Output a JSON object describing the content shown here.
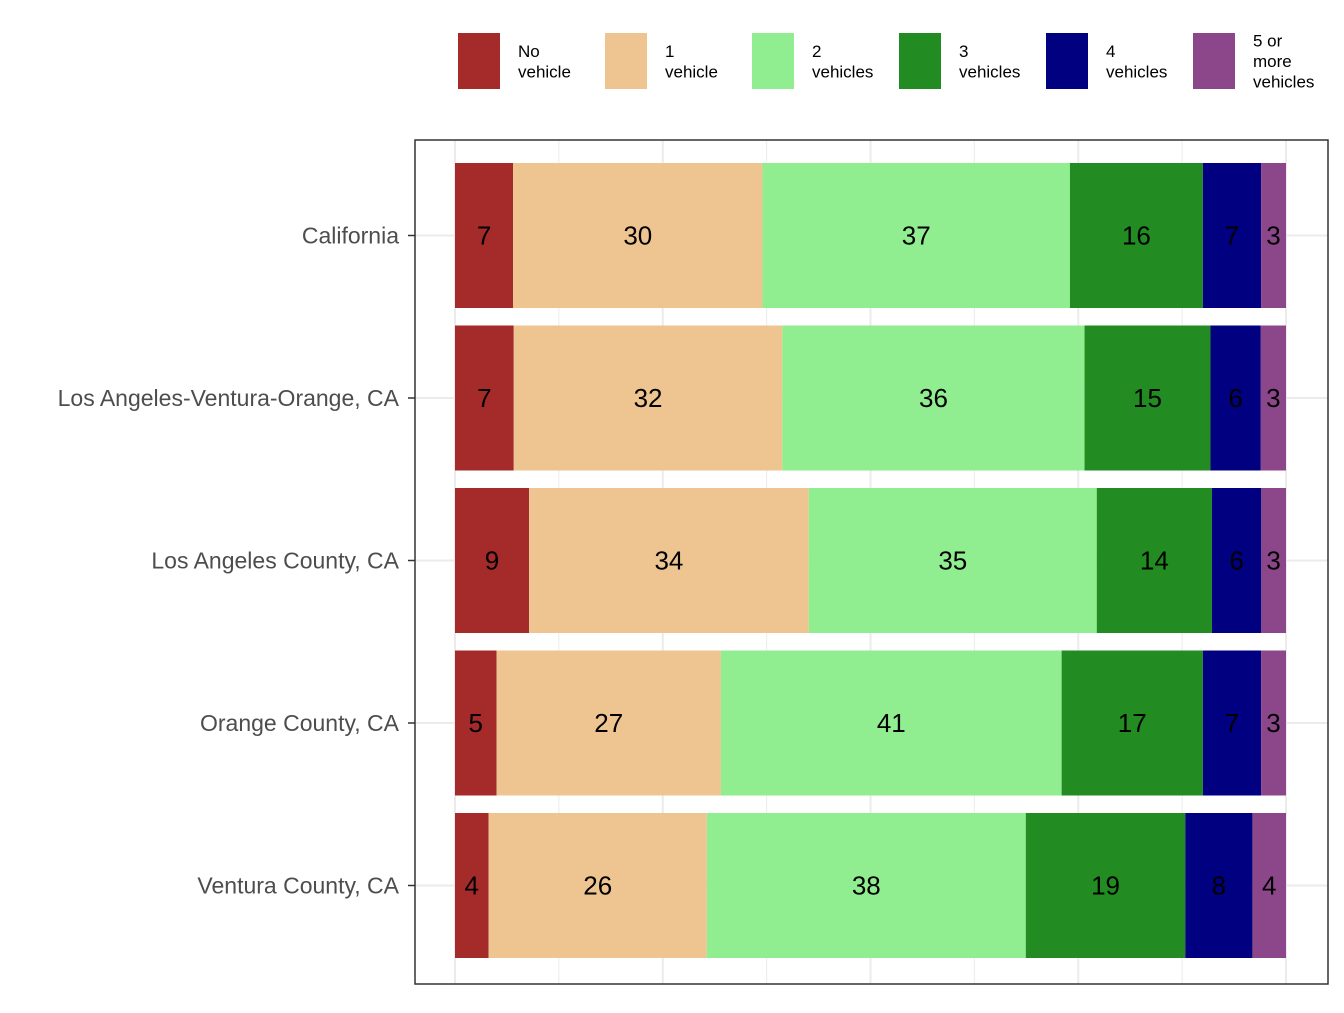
{
  "chart_data": {
    "type": "bar",
    "orientation": "horizontal",
    "stacked": true,
    "categories": [
      "California",
      "Los Angeles-Ventura-Orange, CA",
      "Los Angeles County, CA",
      "Orange County, CA",
      "Ventura County, CA"
    ],
    "series": [
      {
        "name": "No\nvehicle",
        "color": "#a52a2a",
        "values": [
          7,
          7,
          9,
          5,
          4
        ]
      },
      {
        "name": "1\nvehicle",
        "color": "#eec591",
        "values": [
          30,
          32,
          34,
          27,
          26
        ]
      },
      {
        "name": "2\nvehicles",
        "color": "#90ee90",
        "values": [
          37,
          36,
          35,
          41,
          38
        ]
      },
      {
        "name": "3\nvehicles",
        "color": "#228b22",
        "values": [
          16,
          15,
          14,
          17,
          19
        ]
      },
      {
        "name": "4\nvehicles",
        "color": "#000080",
        "values": [
          7,
          6,
          6,
          7,
          8
        ]
      },
      {
        "name": "5 or\nmore\nvehicles",
        "color": "#8b4789",
        "values": [
          3,
          3,
          3,
          3,
          4
        ]
      }
    ],
    "title": "",
    "xlabel": "",
    "ylabel": "",
    "legend_position": "top",
    "grid": true,
    "x_axis_labels_shown": false
  }
}
